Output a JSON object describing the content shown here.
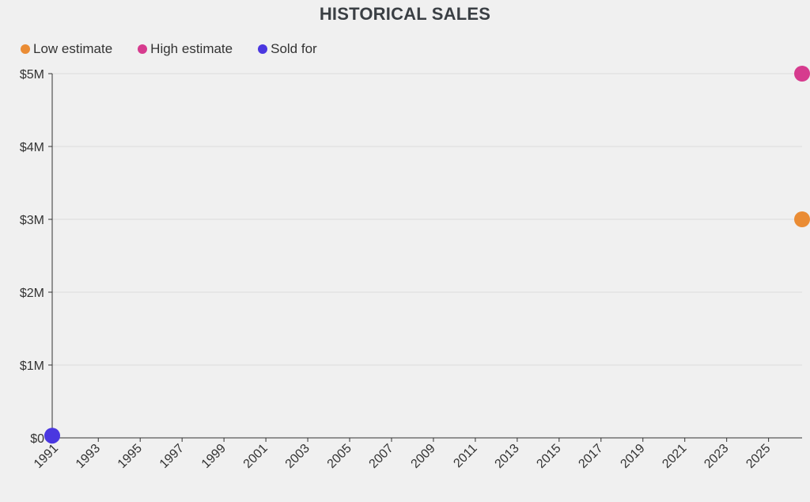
{
  "chart_data": {
    "type": "scatter",
    "title": "HISTORICAL SALES",
    "xlabel": "",
    "ylabel": "",
    "xlim": [
      1990.8,
      2026.6
    ],
    "ylim": [
      0,
      5000000
    ],
    "x_ticks": [
      1991,
      1993,
      1995,
      1997,
      1999,
      2001,
      2003,
      2005,
      2007,
      2009,
      2011,
      2013,
      2015,
      2017,
      2019,
      2021,
      2023,
      2025
    ],
    "y_ticks": [
      {
        "value": 0,
        "label": "$0"
      },
      {
        "value": 1000000,
        "label": "$1M"
      },
      {
        "value": 2000000,
        "label": "$2M"
      },
      {
        "value": 3000000,
        "label": "$3M"
      },
      {
        "value": 4000000,
        "label": "$4M"
      },
      {
        "value": 5000000,
        "label": "$5M"
      }
    ],
    "grid": true,
    "legend_position": "top-left",
    "series": [
      {
        "name": "Low estimate",
        "color": "#ea8c34",
        "points": [
          {
            "x": 2026.6,
            "y": 3000000
          }
        ]
      },
      {
        "name": "High estimate",
        "color": "#d63b8e",
        "points": [
          {
            "x": 2026.6,
            "y": 5000000
          }
        ]
      },
      {
        "name": "Sold for",
        "color": "#4a37e0",
        "points": [
          {
            "x": 1990.8,
            "y": 30000
          }
        ]
      }
    ]
  }
}
